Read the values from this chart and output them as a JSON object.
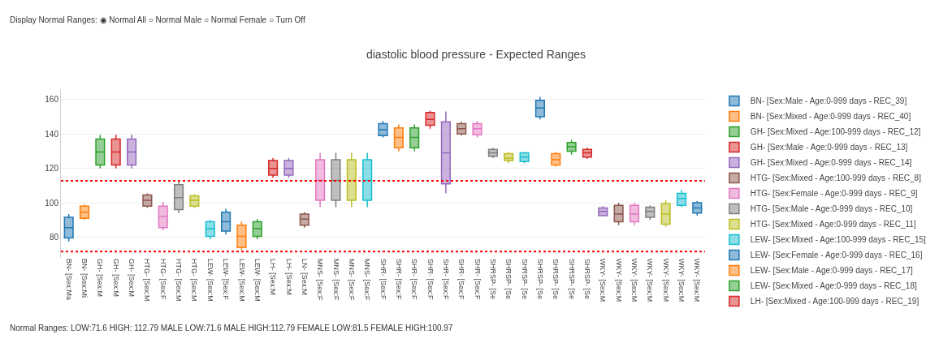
{
  "chart_data": {
    "type": "box",
    "title": "diastolic blood pressure - Expected Ranges",
    "annotations": [
      "Display Normal Ranges: ◉ Normal All ○ Normal Male ○ Normal Female ○ Turn Off",
      "Normal Ranges: LOW:71.6 HIGH: 112.79 MALE LOW:71.6 MALE HIGH:112.79 FEMALE LOW:81.5 FEMALE HIGH:100.97"
    ],
    "categories": [
      "BN- [Sex:Ma",
      "BN- [Sex:Mi",
      "GH- [Sex:M",
      "GH- [Sex:M",
      "GH- [Sex:M",
      "HTG- [Sex:M",
      "HTG- [Sex:F",
      "HTG- [Sex:M",
      "HTG- [Sex:M",
      "LEW- [Sex:M",
      "LEW- [Sex:F",
      "LEW- [Sex:M",
      "LEW- [Sex:M",
      "LH- [Sex:M",
      "LH- [Sex:M",
      "LN- [Sex:M",
      "MNS- [Sex:F",
      "MNS- [Sex:F",
      "MNS- [Sex:F",
      "MNS- [Sex:F",
      "SHR- [Sex:F",
      "SHR- [Sex:F",
      "SHR- [Sex:F",
      "SHR- [Sex:F",
      "SHR- [Sex:F",
      "SHR- [Sex:F",
      "SHR- [Sex:F",
      "SHRSP- [Se",
      "SHRSP- [Se",
      "SHRSP- [Se",
      "SHRSP- [Se",
      "SHRSP- [Se",
      "SHRSP- [Se",
      "SHRSP- [Se",
      "WKY- [Sex:M",
      "WKY- [Sex:M",
      "WKY- [Sex:M",
      "WKY- [Sex:M",
      "WKY- [Sex:M",
      "WKY- [Sex:M",
      "WKY- [Sex:M"
    ],
    "ylim": [
      68,
      166
    ],
    "yticks": [
      80,
      100,
      120,
      140,
      160
    ],
    "grid": "y",
    "legend": "right",
    "ref_lines": [
      {
        "axis": "y",
        "value": 112.79,
        "color": "#ff0000",
        "line_style": "dotted"
      },
      {
        "axis": "y",
        "value": 71.6,
        "color": "#ff0000",
        "line_style": "dotted"
      }
    ],
    "series": [
      {
        "name": "BN- [Sex:Male - Age:0-999 days - REC_39]",
        "color": "#1f77b4",
        "boxes": [
          {
            "low": 77.5,
            "q1": 79.5,
            "median": 85.5,
            "q3": 91.5,
            "high": 93.5
          },
          null,
          null,
          null,
          null,
          null,
          null,
          null,
          null,
          null,
          null,
          null,
          null,
          null,
          null,
          null,
          null,
          null,
          null,
          null,
          null,
          null,
          null,
          null,
          null,
          null,
          null,
          null,
          null,
          null,
          null,
          null,
          null,
          null,
          null,
          null,
          null,
          null,
          null,
          null,
          null
        ]
      },
      {
        "name": "BN- [Sex:Mixed - Age:0-999 days - REC_40]",
        "color": "#ff7f0e",
        "boxes": [
          null,
          {
            "low": 90,
            "q1": 91,
            "median": 94.5,
            "q3": 98,
            "high": 99
          },
          null,
          null,
          null,
          null,
          null,
          null,
          null,
          null,
          null,
          null,
          null,
          null,
          null,
          null,
          null,
          null,
          null,
          null,
          null,
          null,
          null,
          null,
          null,
          null,
          null,
          null,
          null,
          null,
          null,
          null,
          null,
          null,
          null,
          null,
          null,
          null,
          null,
          null,
          null
        ]
      },
      {
        "name": "GH- [Sex:Mixed - Age:100-999 days - REC_12]",
        "color": "#2ca02c",
        "boxes": [
          null,
          null,
          {
            "low": 120,
            "q1": 122,
            "median": 129.5,
            "q3": 137,
            "high": 139.5
          },
          null,
          null,
          null,
          null,
          null,
          null,
          null,
          null,
          null,
          null,
          null,
          null,
          null,
          null,
          null,
          null,
          null,
          null,
          null,
          null,
          null,
          null,
          null,
          null,
          null,
          null,
          null,
          null,
          null,
          null,
          null,
          null,
          null,
          null,
          null,
          null,
          null,
          null
        ]
      },
      {
        "name": "GH- [Sex:Male - Age:0-999 days - REC_13]",
        "color": "#d62728",
        "boxes": [
          null,
          null,
          null,
          {
            "low": 120,
            "q1": 122,
            "median": 129.5,
            "q3": 137,
            "high": 139.5
          },
          null,
          null,
          null,
          null,
          null,
          null,
          null,
          null,
          null,
          null,
          null,
          null,
          null,
          null,
          null,
          null,
          null,
          null,
          null,
          null,
          null,
          null,
          null,
          null,
          null,
          null,
          null,
          null,
          null,
          null,
          null,
          null,
          null,
          null,
          null,
          null,
          null
        ]
      },
      {
        "name": "GH- [Sex:Mixed - Age:0-999 days - REC_14]",
        "color": "#9467bd",
        "boxes": [
          null,
          null,
          null,
          null,
          {
            "low": 120,
            "q1": 122,
            "median": 129.5,
            "q3": 137,
            "high": 139.5
          },
          null,
          null,
          null,
          null,
          null,
          null,
          null,
          null,
          null,
          null,
          null,
          null,
          null,
          null,
          null,
          null,
          null,
          null,
          null,
          null,
          null,
          null,
          null,
          null,
          null,
          null,
          null,
          null,
          null,
          null,
          null,
          null,
          null,
          null,
          null,
          null
        ]
      },
      {
        "name": "HTG- [Sex:Mixed - Age:100-999 days - REC_8]",
        "color": "#8c564b",
        "boxes": [
          null,
          null,
          null,
          null,
          null,
          {
            "low": 97,
            "q1": 98,
            "median": 101.5,
            "q3": 104.5,
            "high": 105.5
          },
          null,
          null,
          null,
          null,
          null,
          null,
          null,
          null,
          null,
          null,
          null,
          null,
          null,
          null,
          null,
          null,
          null,
          null,
          null,
          null,
          null,
          null,
          null,
          null,
          null,
          null,
          null,
          null,
          null,
          null,
          null,
          null,
          null,
          null,
          null
        ]
      },
      {
        "name": "HTG- [Sex:Female - Age:0-999 days - REC_9]",
        "color": "#e377c2",
        "boxes": [
          null,
          null,
          null,
          null,
          null,
          null,
          {
            "low": 84,
            "q1": 85.5,
            "median": 92,
            "q3": 98,
            "high": 100.5
          },
          null,
          null,
          null,
          null,
          null,
          null,
          null,
          null,
          null,
          null,
          null,
          null,
          null,
          null,
          null,
          null,
          null,
          null,
          null,
          null,
          null,
          null,
          null,
          null,
          null,
          null,
          null,
          null,
          null,
          null,
          null,
          null,
          null,
          null
        ]
      },
      {
        "name": "HTG- [Sex:Male - Age:0-999 days - REC_10]",
        "color": "#7f7f7f",
        "boxes": [
          null,
          null,
          null,
          null,
          null,
          null,
          null,
          {
            "low": 94,
            "q1": 96,
            "median": 103,
            "q3": 110.5,
            "high": 112.5
          },
          null,
          null,
          null,
          null,
          null,
          null,
          null,
          null,
          null,
          null,
          null,
          null,
          null,
          null,
          null,
          null,
          null,
          null,
          null,
          null,
          null,
          null,
          null,
          null,
          null,
          null,
          null,
          null,
          null,
          null,
          null,
          null,
          null
        ]
      },
      {
        "name": "HTG- [Sex:Mixed - Age:0-999 days - REC_11]",
        "color": "#bcbd22",
        "boxes": [
          null,
          null,
          null,
          null,
          null,
          null,
          null,
          null,
          {
            "low": 97,
            "q1": 98,
            "median": 101.5,
            "q3": 104,
            "high": 105
          },
          null,
          null,
          null,
          null,
          null,
          null,
          null,
          null,
          null,
          null,
          null,
          null,
          null,
          null,
          null,
          null,
          null,
          null,
          null,
          null,
          null,
          null,
          null,
          null,
          null,
          null,
          null,
          null,
          null,
          null,
          null,
          null
        ]
      },
      {
        "name": "LEW- [Sex:Mixed - Age:100-999 days - REC_15]",
        "color": "#17becf",
        "boxes": [
          null,
          null,
          null,
          null,
          null,
          null,
          null,
          null,
          null,
          {
            "low": 79,
            "q1": 80.5,
            "median": 85,
            "q3": 89,
            "high": 90
          },
          null,
          null,
          null,
          null,
          null,
          null,
          null,
          null,
          null,
          null,
          null,
          null,
          null,
          null,
          null,
          null,
          null,
          null,
          null,
          null,
          null,
          null,
          null,
          null,
          null,
          null,
          null,
          null,
          null,
          null,
          null
        ]
      },
      {
        "name": "LEW- [Sex:Female - Age:0-999 days - REC_16]",
        "color": "#1f77b4",
        "boxes": [
          null,
          null,
          null,
          null,
          null,
          null,
          null,
          null,
          null,
          null,
          {
            "low": 81.5,
            "q1": 83.5,
            "median": 89,
            "q3": 94.5,
            "high": 96.5
          },
          null,
          null,
          null,
          null,
          null,
          null,
          null,
          null,
          null,
          null,
          null,
          null,
          null,
          null,
          null,
          null,
          null,
          null,
          null,
          null,
          null,
          null,
          null,
          null,
          null,
          null,
          null,
          null,
          null,
          null
        ]
      },
      {
        "name": "LEW- [Sex:Male - Age:0-999 days - REC_17]",
        "color": "#ff7f0e",
        "boxes": [
          null,
          null,
          null,
          null,
          null,
          null,
          null,
          null,
          null,
          null,
          null,
          {
            "low": 72.5,
            "q1": 74,
            "median": 80.5,
            "q3": 87,
            "high": 89
          },
          null,
          null,
          null,
          null,
          null,
          null,
          null,
          null,
          null,
          null,
          null,
          null,
          null,
          null,
          null,
          null,
          null,
          null,
          null,
          null,
          null,
          null,
          null,
          null,
          null,
          null,
          null,
          null,
          null
        ]
      },
      {
        "name": "LEW- [Sex:Mixed - Age:0-999 days - REC_18]",
        "color": "#2ca02c",
        "boxes": [
          null,
          null,
          null,
          null,
          null,
          null,
          null,
          null,
          null,
          null,
          null,
          null,
          {
            "low": 79,
            "q1": 80.5,
            "median": 85,
            "q3": 89,
            "high": 90.5
          },
          null,
          null,
          null,
          null,
          null,
          null,
          null,
          null,
          null,
          null,
          null,
          null,
          null,
          null,
          null,
          null,
          null,
          null,
          null,
          null,
          null,
          null,
          null,
          null,
          null,
          null,
          null,
          null
        ]
      },
      {
        "name": "LH- [Sex:Mixed - Age:100-999 days - REC_19]",
        "color": "#d62728",
        "boxes": [
          null,
          null,
          null,
          null,
          null,
          null,
          null,
          null,
          null,
          null,
          null,
          null,
          null,
          {
            "low": 114.5,
            "q1": 116,
            "median": 120,
            "q3": 124.5,
            "high": 126
          },
          null,
          null,
          null,
          null,
          null,
          null,
          null,
          null,
          null,
          null,
          null,
          null,
          null,
          null,
          null,
          null,
          null,
          null,
          null,
          null,
          null,
          null,
          null,
          null,
          null,
          null,
          null
        ]
      },
      {
        "color": "#9467bd",
        "boxes": [
          null,
          null,
          null,
          null,
          null,
          null,
          null,
          null,
          null,
          null,
          null,
          null,
          null,
          null,
          {
            "low": 114.5,
            "q1": 116,
            "median": 120,
            "q3": 124.5,
            "high": 126
          },
          null,
          null,
          null,
          null,
          null,
          null,
          null,
          null,
          null,
          null,
          null,
          null,
          null,
          null,
          null,
          null,
          null,
          null,
          null,
          null,
          null,
          null,
          null,
          null,
          null,
          null
        ]
      },
      {
        "color": "#8c564b",
        "boxes": [
          null,
          null,
          null,
          null,
          null,
          null,
          null,
          null,
          null,
          null,
          null,
          null,
          null,
          null,
          null,
          {
            "low": 85.5,
            "q1": 87,
            "median": 90.5,
            "q3": 93.5,
            "high": 94.5
          },
          null,
          null,
          null,
          null,
          null,
          null,
          null,
          null,
          null,
          null,
          null,
          null,
          null,
          null,
          null,
          null,
          null,
          null,
          null,
          null,
          null,
          null,
          null,
          null,
          null
        ]
      },
      {
        "color": "#e377c2",
        "boxes": [
          null,
          null,
          null,
          null,
          null,
          null,
          null,
          null,
          null,
          null,
          null,
          null,
          null,
          null,
          null,
          null,
          {
            "low": 97.5,
            "q1": 101.5,
            "median": 113,
            "q3": 125,
            "high": 129
          },
          null,
          null,
          null,
          null,
          null,
          null,
          null,
          null,
          null,
          null,
          null,
          null,
          null,
          null,
          null,
          null,
          null,
          null,
          null,
          null,
          null,
          null,
          null,
          null
        ]
      },
      {
        "color": "#7f7f7f",
        "boxes": [
          null,
          null,
          null,
          null,
          null,
          null,
          null,
          null,
          null,
          null,
          null,
          null,
          null,
          null,
          null,
          null,
          null,
          {
            "low": 97.5,
            "q1": 101.5,
            "median": 113,
            "q3": 125,
            "high": 129
          },
          null,
          null,
          null,
          null,
          null,
          null,
          null,
          null,
          null,
          null,
          null,
          null,
          null,
          null,
          null,
          null,
          null,
          null,
          null,
          null,
          null,
          null,
          null
        ]
      },
      {
        "color": "#bcbd22",
        "boxes": [
          null,
          null,
          null,
          null,
          null,
          null,
          null,
          null,
          null,
          null,
          null,
          null,
          null,
          null,
          null,
          null,
          null,
          null,
          {
            "low": 97.5,
            "q1": 101.5,
            "median": 113,
            "q3": 125,
            "high": 129
          },
          null,
          null,
          null,
          null,
          null,
          null,
          null,
          null,
          null,
          null,
          null,
          null,
          null,
          null,
          null,
          null,
          null,
          null,
          null,
          null,
          null,
          null
        ]
      },
      {
        "color": "#17becf",
        "boxes": [
          null,
          null,
          null,
          null,
          null,
          null,
          null,
          null,
          null,
          null,
          null,
          null,
          null,
          null,
          null,
          null,
          null,
          null,
          null,
          {
            "low": 97.5,
            "q1": 101.5,
            "median": 113,
            "q3": 125,
            "high": 129
          },
          null,
          null,
          null,
          null,
          null,
          null,
          null,
          null,
          null,
          null,
          null,
          null,
          null,
          null,
          null,
          null,
          null,
          null,
          null,
          null,
          null
        ]
      },
      {
        "color": "#1f77b4",
        "boxes": [
          null,
          null,
          null,
          null,
          null,
          null,
          null,
          null,
          null,
          null,
          null,
          null,
          null,
          null,
          null,
          null,
          null,
          null,
          null,
          null,
          {
            "low": 138,
            "q1": 139,
            "median": 142.5,
            "q3": 146,
            "high": 147.5
          },
          null,
          null,
          null,
          null,
          null,
          null,
          null,
          null,
          null,
          null,
          null,
          null,
          null,
          null,
          null,
          null,
          null,
          null,
          null,
          null
        ]
      },
      {
        "color": "#ff7f0e",
        "boxes": [
          null,
          null,
          null,
          null,
          null,
          null,
          null,
          null,
          null,
          null,
          null,
          null,
          null,
          null,
          null,
          null,
          null,
          null,
          null,
          null,
          null,
          {
            "low": 130,
            "q1": 132,
            "median": 138,
            "q3": 143.5,
            "high": 145.5
          },
          null,
          null,
          null,
          null,
          null,
          null,
          null,
          null,
          null,
          null,
          null,
          null,
          null,
          null,
          null,
          null,
          null,
          null,
          null
        ]
      },
      {
        "color": "#2ca02c",
        "boxes": [
          null,
          null,
          null,
          null,
          null,
          null,
          null,
          null,
          null,
          null,
          null,
          null,
          null,
          null,
          null,
          null,
          null,
          null,
          null,
          null,
          null,
          null,
          {
            "low": 130,
            "q1": 132,
            "median": 138,
            "q3": 143.5,
            "high": 145.5
          },
          null,
          null,
          null,
          null,
          null,
          null,
          null,
          null,
          null,
          null,
          null,
          null,
          null,
          null,
          null,
          null,
          null,
          null
        ]
      },
      {
        "color": "#d62728",
        "boxes": [
          null,
          null,
          null,
          null,
          null,
          null,
          null,
          null,
          null,
          null,
          null,
          null,
          null,
          null,
          null,
          null,
          null,
          null,
          null,
          null,
          null,
          null,
          null,
          {
            "low": 143,
            "q1": 145,
            "median": 148.5,
            "q3": 152.5,
            "high": 153.5
          },
          null,
          null,
          null,
          null,
          null,
          null,
          null,
          null,
          null,
          null,
          null,
          null,
          null,
          null,
          null,
          null,
          null
        ]
      },
      {
        "color": "#9467bd",
        "boxes": [
          null,
          null,
          null,
          null,
          null,
          null,
          null,
          null,
          null,
          null,
          null,
          null,
          null,
          null,
          null,
          null,
          null,
          null,
          null,
          null,
          null,
          null,
          null,
          null,
          {
            "low": 105.5,
            "q1": 111,
            "median": 129,
            "q3": 147,
            "high": 153
          },
          null,
          null,
          null,
          null,
          null,
          null,
          null,
          null,
          null,
          null,
          null,
          null,
          null,
          null,
          null,
          null
        ]
      },
      {
        "color": "#8c564b",
        "boxes": [
          null,
          null,
          null,
          null,
          null,
          null,
          null,
          null,
          null,
          null,
          null,
          null,
          null,
          null,
          null,
          null,
          null,
          null,
          null,
          null,
          null,
          null,
          null,
          null,
          null,
          {
            "low": 139,
            "q1": 140,
            "median": 143,
            "q3": 146,
            "high": 147
          },
          null,
          null,
          null,
          null,
          null,
          null,
          null,
          null,
          null,
          null,
          null,
          null,
          null,
          null,
          null
        ]
      },
      {
        "color": "#e377c2",
        "boxes": [
          null,
          null,
          null,
          null,
          null,
          null,
          null,
          null,
          null,
          null,
          null,
          null,
          null,
          null,
          null,
          null,
          null,
          null,
          null,
          null,
          null,
          null,
          null,
          null,
          null,
          null,
          {
            "low": 138,
            "q1": 139.5,
            "median": 143,
            "q3": 146,
            "high": 147.5
          },
          null,
          null,
          null,
          null,
          null,
          null,
          null,
          null,
          null,
          null,
          null,
          null,
          null,
          null
        ]
      },
      {
        "color": "#7f7f7f",
        "boxes": [
          null,
          null,
          null,
          null,
          null,
          null,
          null,
          null,
          null,
          null,
          null,
          null,
          null,
          null,
          null,
          null,
          null,
          null,
          null,
          null,
          null,
          null,
          null,
          null,
          null,
          null,
          null,
          {
            "low": 126,
            "q1": 127,
            "median": 129,
            "q3": 131,
            "high": 132
          },
          null,
          null,
          null,
          null,
          null,
          null,
          null,
          null,
          null,
          null,
          null,
          null,
          null
        ]
      },
      {
        "color": "#bcbd22",
        "boxes": [
          null,
          null,
          null,
          null,
          null,
          null,
          null,
          null,
          null,
          null,
          null,
          null,
          null,
          null,
          null,
          null,
          null,
          null,
          null,
          null,
          null,
          null,
          null,
          null,
          null,
          null,
          null,
          null,
          {
            "low": 123,
            "q1": 124.5,
            "median": 126,
            "q3": 128.5,
            "high": 129.5
          },
          null,
          null,
          null,
          null,
          null,
          null,
          null,
          null,
          null,
          null,
          null,
          null
        ]
      },
      {
        "color": "#17becf",
        "boxes": [
          null,
          null,
          null,
          null,
          null,
          null,
          null,
          null,
          null,
          null,
          null,
          null,
          null,
          null,
          null,
          null,
          null,
          null,
          null,
          null,
          null,
          null,
          null,
          null,
          null,
          null,
          null,
          null,
          null,
          {
            "low": 123,
            "q1": 124,
            "median": 126.5,
            "q3": 129,
            "high": 129.5
          },
          null,
          null,
          null,
          null,
          null,
          null,
          null,
          null,
          null,
          null,
          null
        ]
      },
      {
        "color": "#1f77b4",
        "boxes": [
          null,
          null,
          null,
          null,
          null,
          null,
          null,
          null,
          null,
          null,
          null,
          null,
          null,
          null,
          null,
          null,
          null,
          null,
          null,
          null,
          null,
          null,
          null,
          null,
          null,
          null,
          null,
          null,
          null,
          null,
          {
            "low": 148.5,
            "q1": 150,
            "median": 155,
            "q3": 159.5,
            "high": 161.5
          },
          null,
          null,
          null,
          null,
          null,
          null,
          null,
          null,
          null,
          null
        ]
      },
      {
        "color": "#ff7f0e",
        "boxes": [
          null,
          null,
          null,
          null,
          null,
          null,
          null,
          null,
          null,
          null,
          null,
          null,
          null,
          null,
          null,
          null,
          null,
          null,
          null,
          null,
          null,
          null,
          null,
          null,
          null,
          null,
          null,
          null,
          null,
          null,
          null,
          {
            "low": 121,
            "q1": 122,
            "median": 125,
            "q3": 128.5,
            "high": 129.5
          },
          null,
          null,
          null,
          null,
          null,
          null,
          null,
          null,
          null
        ]
      },
      {
        "color": "#2ca02c",
        "boxes": [
          null,
          null,
          null,
          null,
          null,
          null,
          null,
          null,
          null,
          null,
          null,
          null,
          null,
          null,
          null,
          null,
          null,
          null,
          null,
          null,
          null,
          null,
          null,
          null,
          null,
          null,
          null,
          null,
          null,
          null,
          null,
          null,
          {
            "low": 128,
            "q1": 130,
            "median": 132.5,
            "q3": 135,
            "high": 136.5
          },
          null,
          null,
          null,
          null,
          null,
          null,
          null,
          null
        ]
      },
      {
        "color": "#d62728",
        "boxes": [
          null,
          null,
          null,
          null,
          null,
          null,
          null,
          null,
          null,
          null,
          null,
          null,
          null,
          null,
          null,
          null,
          null,
          null,
          null,
          null,
          null,
          null,
          null,
          null,
          null,
          null,
          null,
          null,
          null,
          null,
          null,
          null,
          null,
          {
            "low": 125.5,
            "q1": 126.5,
            "median": 129,
            "q3": 131,
            "high": 132
          },
          null,
          null,
          null,
          null,
          null,
          null,
          null
        ]
      },
      {
        "color": "#9467bd",
        "boxes": [
          null,
          null,
          null,
          null,
          null,
          null,
          null,
          null,
          null,
          null,
          null,
          null,
          null,
          null,
          null,
          null,
          null,
          null,
          null,
          null,
          null,
          null,
          null,
          null,
          null,
          null,
          null,
          null,
          null,
          null,
          null,
          null,
          null,
          null,
          {
            "low": 92,
            "q1": 92.5,
            "median": 95,
            "q3": 97,
            "high": 98
          },
          null,
          null,
          null,
          null,
          null,
          null
        ]
      },
      {
        "color": "#8c564b",
        "boxes": [
          null,
          null,
          null,
          null,
          null,
          null,
          null,
          null,
          null,
          null,
          null,
          null,
          null,
          null,
          null,
          null,
          null,
          null,
          null,
          null,
          null,
          null,
          null,
          null,
          null,
          null,
          null,
          null,
          null,
          null,
          null,
          null,
          null,
          null,
          null,
          {
            "low": 87,
            "q1": 89,
            "median": 93.5,
            "q3": 98.5,
            "high": 100
          },
          null,
          null,
          null,
          null,
          null
        ]
      },
      {
        "color": "#e377c2",
        "boxes": [
          null,
          null,
          null,
          null,
          null,
          null,
          null,
          null,
          null,
          null,
          null,
          null,
          null,
          null,
          null,
          null,
          null,
          null,
          null,
          null,
          null,
          null,
          null,
          null,
          null,
          null,
          null,
          null,
          null,
          null,
          null,
          null,
          null,
          null,
          null,
          null,
          {
            "low": 87,
            "q1": 89,
            "median": 93.5,
            "q3": 98.5,
            "high": 100
          },
          null,
          null,
          null,
          null
        ]
      },
      {
        "color": "#7f7f7f",
        "boxes": [
          null,
          null,
          null,
          null,
          null,
          null,
          null,
          null,
          null,
          null,
          null,
          null,
          null,
          null,
          null,
          null,
          null,
          null,
          null,
          null,
          null,
          null,
          null,
          null,
          null,
          null,
          null,
          null,
          null,
          null,
          null,
          null,
          null,
          null,
          null,
          null,
          null,
          {
            "low": 90,
            "q1": 91.5,
            "median": 95,
            "q3": 97.5,
            "high": 98.5
          },
          null,
          null,
          null
        ]
      },
      {
        "color": "#bcbd22",
        "boxes": [
          null,
          null,
          null,
          null,
          null,
          null,
          null,
          null,
          null,
          null,
          null,
          null,
          null,
          null,
          null,
          null,
          null,
          null,
          null,
          null,
          null,
          null,
          null,
          null,
          null,
          null,
          null,
          null,
          null,
          null,
          null,
          null,
          null,
          null,
          null,
          null,
          null,
          null,
          {
            "low": 86,
            "q1": 87.5,
            "median": 93.5,
            "q3": 99.5,
            "high": 101.5
          },
          null,
          null
        ]
      },
      {
        "color": "#17becf",
        "boxes": [
          null,
          null,
          null,
          null,
          null,
          null,
          null,
          null,
          null,
          null,
          null,
          null,
          null,
          null,
          null,
          null,
          null,
          null,
          null,
          null,
          null,
          null,
          null,
          null,
          null,
          null,
          null,
          null,
          null,
          null,
          null,
          null,
          null,
          null,
          null,
          null,
          null,
          null,
          null,
          {
            "low": 97.5,
            "q1": 98.5,
            "median": 102.5,
            "q3": 105.5,
            "high": 107.5
          },
          null
        ]
      },
      {
        "color": "#1f77b4",
        "boxes": [
          null,
          null,
          null,
          null,
          null,
          null,
          null,
          null,
          null,
          null,
          null,
          null,
          null,
          null,
          null,
          null,
          null,
          null,
          null,
          null,
          null,
          null,
          null,
          null,
          null,
          null,
          null,
          null,
          null,
          null,
          null,
          null,
          null,
          null,
          null,
          null,
          null,
          null,
          null,
          null,
          {
            "low": 92.5,
            "q1": 94,
            "median": 97,
            "q3": 100,
            "high": 101
          }
        ]
      }
    ]
  }
}
